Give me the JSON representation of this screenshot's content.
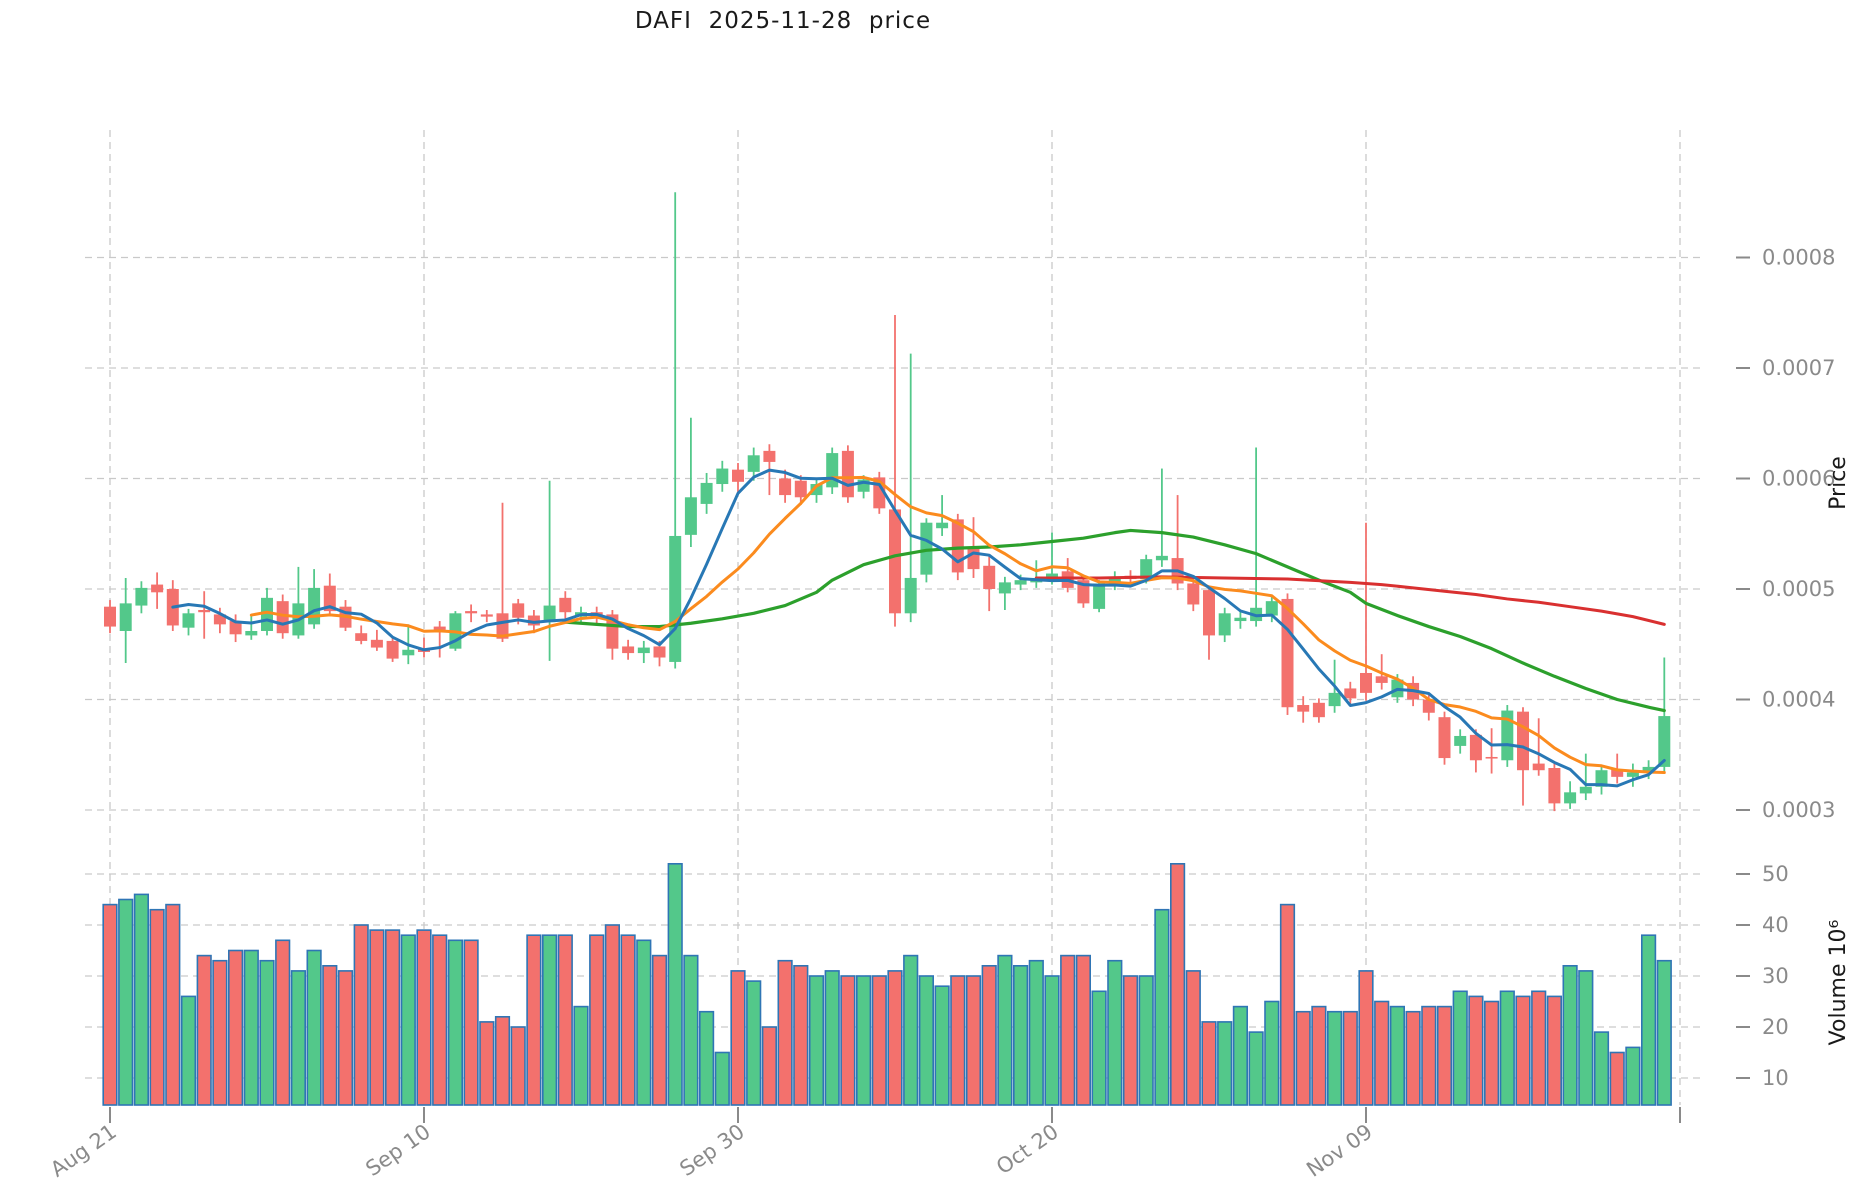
{
  "title": "DAFI  2025-11-28  price",
  "chart_data": {
    "type": "candlestick",
    "title": "DAFI  2025-11-28  price",
    "ylabel_price": "Price",
    "ylabel_volume": "Volume  10⁶",
    "volume_unit_note": "volume shown in millions (10⁶)",
    "legend_position": "none",
    "grid": true,
    "price_tick_labels": [
      "0.0008",
      "0.0007",
      "0.0006",
      "0.0005",
      "0.0004",
      "0.0003"
    ],
    "volume_tick_labels": [
      "50",
      "40",
      "30",
      "20",
      "10"
    ],
    "x_tick_labels": [
      {
        "index": 0,
        "label": "Aug 21"
      },
      {
        "index": 20,
        "label": "Sep 10"
      },
      {
        "index": 40,
        "label": "Sep 30"
      },
      {
        "index": 60,
        "label": "Oct 20"
      },
      {
        "index": 80,
        "label": "Nov 09"
      },
      {
        "index": 100,
        "label": ""
      }
    ],
    "price_axis_range": [
      0.000281,
      0.000915
    ],
    "volume_axis_range": [
      4.5,
      56.5
    ],
    "colors": {
      "up": "#53c88a",
      "down": "#f3716d",
      "volume_edge": "#2f75b5",
      "sma5_line": "#2878b5",
      "sma10_line": "#fb8b1e",
      "long_ma_green": "#2ca02c",
      "long_ma_red": "#d93030",
      "grid": "#c9c9c9",
      "tick_text": "#8a8a8a",
      "title_text": "#1a1a1a"
    },
    "moving_averages": {
      "sma5": {
        "color_key": "sma5_line",
        "period": 5,
        "source": "computed from closes"
      },
      "sma10": {
        "color_key": "sma10_line",
        "period": 10,
        "source": "computed from closes"
      },
      "long_green": {
        "color_key": "long_ma_green",
        "period": 30,
        "source": "sampled points"
      },
      "long_red": {
        "color_key": "long_ma_red",
        "period": 60,
        "source": "sampled points"
      }
    },
    "candle_columns": [
      "date",
      "open",
      "high",
      "low",
      "close",
      "volume_millions"
    ],
    "candles": [
      [
        "2025-08-21",
        0.000484,
        0.00049,
        0.00046,
        0.000466,
        44
      ],
      [
        "2025-08-22",
        0.000462,
        0.00051,
        0.000433,
        0.000487,
        45
      ],
      [
        "2025-08-23",
        0.000485,
        0.000507,
        0.000478,
        0.000501,
        46
      ],
      [
        "2025-08-24",
        0.000504,
        0.000515,
        0.000482,
        0.000497,
        43
      ],
      [
        "2025-08-25",
        0.0005,
        0.000508,
        0.000462,
        0.000467,
        44
      ],
      [
        "2025-08-26",
        0.000465,
        0.000482,
        0.000458,
        0.000478,
        26
      ],
      [
        "2025-08-27",
        0.000481,
        0.000498,
        0.000455,
        0.000479,
        34
      ],
      [
        "2025-08-28",
        0.000477,
        0.000483,
        0.00046,
        0.000468,
        33
      ],
      [
        "2025-08-29",
        0.000471,
        0.000477,
        0.000452,
        0.000459,
        35
      ],
      [
        "2025-08-30",
        0.000458,
        0.000476,
        0.000454,
        0.000462,
        35
      ],
      [
        "2025-08-31",
        0.000462,
        0.000501,
        0.000458,
        0.000492,
        33
      ],
      [
        "2025-09-01",
        0.000489,
        0.000495,
        0.000455,
        0.00046,
        37
      ],
      [
        "2025-09-02",
        0.000458,
        0.00052,
        0.000455,
        0.000487,
        31
      ],
      [
        "2025-09-03",
        0.000468,
        0.000518,
        0.000464,
        0.000501,
        35
      ],
      [
        "2025-09-04",
        0.000503,
        0.000514,
        0.000476,
        0.00048,
        32
      ],
      [
        "2025-09-05",
        0.000484,
        0.00049,
        0.000462,
        0.000465,
        31
      ],
      [
        "2025-09-06",
        0.00046,
        0.000467,
        0.00045,
        0.000453,
        40
      ],
      [
        "2025-09-07",
        0.000454,
        0.000463,
        0.000444,
        0.000447,
        39
      ],
      [
        "2025-09-08",
        0.000453,
        0.000456,
        0.000434,
        0.000437,
        39
      ],
      [
        "2025-09-09",
        0.00044,
        0.000468,
        0.000432,
        0.000445,
        38
      ],
      [
        "2025-09-10",
        0.000446,
        0.000456,
        0.000438,
        0.000443,
        39
      ],
      [
        "2025-09-11",
        0.000466,
        0.000471,
        0.000438,
        0.000463,
        38
      ],
      [
        "2025-09-12",
        0.000446,
        0.00048,
        0.000444,
        0.000478,
        37
      ],
      [
        "2025-09-13",
        0.00048,
        0.000486,
        0.00047,
        0.000478,
        37
      ],
      [
        "2025-09-14",
        0.000477,
        0.000481,
        0.00047,
        0.000475,
        21
      ],
      [
        "2025-09-15",
        0.000478,
        0.000578,
        0.000452,
        0.000455,
        22
      ],
      [
        "2025-09-16",
        0.000487,
        0.000491,
        0.000468,
        0.000474,
        20
      ],
      [
        "2025-09-17",
        0.000476,
        0.000481,
        0.00046,
        0.000467,
        38
      ],
      [
        "2025-09-18",
        0.00047,
        0.000598,
        0.000435,
        0.000485,
        38
      ],
      [
        "2025-09-19",
        0.000492,
        0.000498,
        0.000472,
        0.000479,
        38
      ],
      [
        "2025-09-20",
        0.000475,
        0.000484,
        0.00047,
        0.000479,
        24
      ],
      [
        "2025-09-21",
        0.000479,
        0.000484,
        0.000468,
        0.000475,
        38
      ],
      [
        "2025-09-22",
        0.000477,
        0.000481,
        0.000436,
        0.000446,
        40
      ],
      [
        "2025-09-23",
        0.000448,
        0.000454,
        0.000436,
        0.000442,
        38
      ],
      [
        "2025-09-24",
        0.000442,
        0.000453,
        0.000433,
        0.000447,
        37
      ],
      [
        "2025-09-25",
        0.000448,
        0.000453,
        0.00043,
        0.000438,
        34
      ],
      [
        "2025-09-26",
        0.000434,
        0.000859,
        0.000428,
        0.000548,
        52
      ],
      [
        "2025-09-27",
        0.000549,
        0.000655,
        0.000538,
        0.000583,
        34
      ],
      [
        "2025-09-28",
        0.000577,
        0.000605,
        0.000568,
        0.000596,
        23
      ],
      [
        "2025-09-29",
        0.000595,
        0.000616,
        0.000588,
        0.000609,
        15
      ],
      [
        "2025-09-30",
        0.000608,
        0.000614,
        0.000586,
        0.000597,
        31
      ],
      [
        "2025-10-01",
        0.000606,
        0.000628,
        0.000598,
        0.000621,
        29
      ],
      [
        "2025-10-02",
        0.000625,
        0.000631,
        0.000585,
        0.000615,
        20
      ],
      [
        "2025-10-03",
        0.0006,
        0.000608,
        0.000578,
        0.000585,
        33
      ],
      [
        "2025-10-04",
        0.000598,
        0.000603,
        0.000576,
        0.000583,
        32
      ],
      [
        "2025-10-05",
        0.000585,
        0.0006,
        0.000578,
        0.000595,
        30
      ],
      [
        "2025-10-06",
        0.000592,
        0.000628,
        0.000586,
        0.000623,
        31
      ],
      [
        "2025-10-07",
        0.000625,
        0.00063,
        0.000578,
        0.000583,
        30
      ],
      [
        "2025-10-08",
        0.000588,
        0.000603,
        0.000582,
        0.000599,
        30
      ],
      [
        "2025-10-09",
        0.000601,
        0.000606,
        0.000568,
        0.000573,
        30
      ],
      [
        "2025-10-10",
        0.000572,
        0.000748,
        0.000466,
        0.000478,
        31
      ],
      [
        "2025-10-11",
        0.000478,
        0.000713,
        0.00047,
        0.00051,
        34
      ],
      [
        "2025-10-12",
        0.000513,
        0.000564,
        0.000506,
        0.00056,
        30
      ],
      [
        "2025-10-13",
        0.000555,
        0.000585,
        0.000548,
        0.00056,
        28
      ],
      [
        "2025-10-14",
        0.000563,
        0.000568,
        0.000508,
        0.000515,
        30
      ],
      [
        "2025-10-15",
        0.000537,
        0.000565,
        0.00051,
        0.000518,
        30
      ],
      [
        "2025-10-16",
        0.000521,
        0.000531,
        0.00048,
        0.0005,
        32
      ],
      [
        "2025-10-17",
        0.000496,
        0.000511,
        0.000481,
        0.000506,
        34
      ],
      [
        "2025-10-18",
        0.000504,
        0.000513,
        0.000499,
        0.000508,
        32
      ],
      [
        "2025-10-19",
        0.000506,
        0.000526,
        0.000501,
        0.00051,
        33
      ],
      [
        "2025-10-20",
        0.000509,
        0.000551,
        0.000504,
        0.000514,
        30
      ],
      [
        "2025-10-21",
        0.000516,
        0.000528,
        0.000497,
        0.000501,
        34
      ],
      [
        "2025-10-22",
        0.000508,
        0.000513,
        0.000483,
        0.000487,
        34
      ],
      [
        "2025-10-23",
        0.000482,
        0.000508,
        0.000479,
        0.000505,
        27
      ],
      [
        "2025-10-24",
        0.000504,
        0.000516,
        0.000499,
        0.000511,
        33
      ],
      [
        "2025-10-25",
        0.000512,
        0.000517,
        0.000504,
        0.000509,
        30
      ],
      [
        "2025-10-26",
        0.000509,
        0.000531,
        0.000505,
        0.000527,
        30
      ],
      [
        "2025-10-27",
        0.000526,
        0.000609,
        0.00052,
        0.00053,
        43
      ],
      [
        "2025-10-28",
        0.000528,
        0.000585,
        0.000499,
        0.000505,
        52
      ],
      [
        "2025-10-29",
        0.000505,
        0.000511,
        0.00048,
        0.000486,
        31
      ],
      [
        "2025-10-30",
        0.000499,
        0.000502,
        0.000436,
        0.000458,
        21
      ],
      [
        "2025-10-31",
        0.000458,
        0.000483,
        0.000452,
        0.000478,
        21
      ],
      [
        "2025-11-01",
        0.000471,
        0.000481,
        0.000464,
        0.000474,
        24
      ],
      [
        "2025-11-02",
        0.000471,
        0.000628,
        0.000466,
        0.000483,
        19
      ],
      [
        "2025-11-03",
        0.000476,
        0.000494,
        0.00047,
        0.000489,
        25
      ],
      [
        "2025-11-04",
        0.000491,
        0.000496,
        0.000386,
        0.000393,
        44
      ],
      [
        "2025-11-05",
        0.000395,
        0.000403,
        0.000379,
        0.000389,
        23
      ],
      [
        "2025-11-06",
        0.000397,
        0.000401,
        0.000379,
        0.000384,
        24
      ],
      [
        "2025-11-07",
        0.000394,
        0.000436,
        0.000388,
        0.000406,
        23
      ],
      [
        "2025-11-08",
        0.00041,
        0.000416,
        0.000396,
        0.000401,
        23
      ],
      [
        "2025-11-09",
        0.000424,
        0.00056,
        0.000399,
        0.000406,
        31
      ],
      [
        "2025-11-10",
        0.000421,
        0.000441,
        0.000409,
        0.000415,
        25
      ],
      [
        "2025-11-11",
        0.000402,
        0.000423,
        0.000397,
        0.000418,
        24
      ],
      [
        "2025-11-12",
        0.000415,
        0.000421,
        0.000394,
        0.0004,
        23
      ],
      [
        "2025-11-13",
        0.0004,
        0.000406,
        0.000381,
        0.000388,
        24
      ],
      [
        "2025-11-14",
        0.000384,
        0.000389,
        0.000341,
        0.000347,
        24
      ],
      [
        "2025-11-15",
        0.000358,
        0.000373,
        0.000351,
        0.000367,
        27
      ],
      [
        "2025-11-16",
        0.000368,
        0.000373,
        0.000334,
        0.000345,
        26
      ],
      [
        "2025-11-17",
        0.000348,
        0.000374,
        0.000333,
        0.000347,
        25
      ],
      [
        "2025-11-18",
        0.000345,
        0.000395,
        0.000339,
        0.00039,
        27
      ],
      [
        "2025-11-19",
        0.000389,
        0.000393,
        0.000304,
        0.000336,
        26
      ],
      [
        "2025-11-20",
        0.000342,
        0.000383,
        0.000331,
        0.000336,
        27
      ],
      [
        "2025-11-21",
        0.000338,
        0.000343,
        0.000299,
        0.000306,
        26
      ],
      [
        "2025-11-22",
        0.000306,
        0.000326,
        0.000301,
        0.000316,
        32
      ],
      [
        "2025-11-23",
        0.000315,
        0.000351,
        0.000309,
        0.000321,
        31
      ],
      [
        "2025-11-24",
        0.000321,
        0.000341,
        0.000314,
        0.000336,
        19
      ],
      [
        "2025-11-25",
        0.000337,
        0.000351,
        0.000324,
        0.00033,
        15
      ],
      [
        "2025-11-26",
        0.00033,
        0.000342,
        0.000321,
        0.000334,
        16
      ],
      [
        "2025-11-27",
        0.000334,
        0.000345,
        0.000328,
        0.000339,
        38
      ],
      [
        "2025-11-28",
        0.000339,
        0.000438,
        0.000334,
        0.000385,
        33
      ]
    ],
    "long_ma_green_points": [
      [
        29,
        0.00047
      ],
      [
        31,
        0.000468
      ],
      [
        33,
        0.000466
      ],
      [
        35,
        0.000466
      ],
      [
        37,
        0.000469
      ],
      [
        39,
        0.000473
      ],
      [
        41,
        0.000478
      ],
      [
        43,
        0.000485
      ],
      [
        45,
        0.000497
      ],
      [
        46,
        0.000508
      ],
      [
        48,
        0.000522
      ],
      [
        50,
        0.00053
      ],
      [
        52,
        0.000535
      ],
      [
        54,
        0.000537
      ],
      [
        56,
        0.000538
      ],
      [
        58,
        0.00054
      ],
      [
        60,
        0.000543
      ],
      [
        62,
        0.000546
      ],
      [
        64,
        0.000551
      ],
      [
        65,
        0.000553
      ],
      [
        67,
        0.000551
      ],
      [
        69,
        0.000547
      ],
      [
        71,
        0.00054
      ],
      [
        73,
        0.000532
      ],
      [
        75,
        0.00052
      ],
      [
        77,
        0.000508
      ],
      [
        79,
        0.000497
      ],
      [
        80,
        0.000487
      ],
      [
        82,
        0.000476
      ],
      [
        84,
        0.000466
      ],
      [
        86,
        0.000457
      ],
      [
        88,
        0.000446
      ],
      [
        90,
        0.000433
      ],
      [
        92,
        0.000421
      ],
      [
        94,
        0.00041
      ],
      [
        96,
        0.0004
      ],
      [
        98,
        0.000393
      ],
      [
        99,
        0.00039
      ]
    ],
    "long_ma_red_points": [
      [
        59,
        0.00051
      ],
      [
        63,
        0.00051
      ],
      [
        67,
        0.000511
      ],
      [
        71,
        0.00051
      ],
      [
        75,
        0.000509
      ],
      [
        79,
        0.000506
      ],
      [
        81,
        0.000504
      ],
      [
        83,
        0.000501
      ],
      [
        85,
        0.000498
      ],
      [
        87,
        0.000495
      ],
      [
        89,
        0.000491
      ],
      [
        91,
        0.000488
      ],
      [
        93,
        0.000484
      ],
      [
        95,
        0.00048
      ],
      [
        97,
        0.000475
      ],
      [
        99,
        0.000468
      ]
    ]
  }
}
